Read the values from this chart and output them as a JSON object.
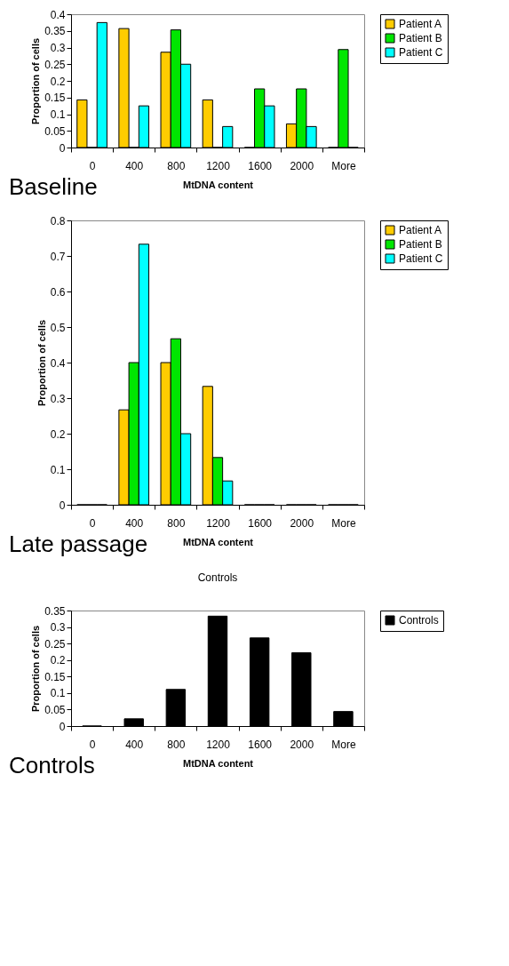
{
  "chart_data": [
    {
      "type": "bar",
      "xlabel": "MtDNA content",
      "ylabel": "Proportion of cells",
      "categories": [
        "0",
        "400",
        "800",
        "1200",
        "1600",
        "2000",
        "More"
      ],
      "ylim": [
        0,
        0.4
      ],
      "yticks": [
        0,
        0.05,
        0.1,
        0.15,
        0.2,
        0.25,
        0.3,
        0.35,
        0.4
      ],
      "legend": "right",
      "annotations": [
        "Baseline"
      ],
      "series": [
        {
          "name": "Patient A",
          "color": "#ffcc00",
          "values": [
            0.143,
            0.357,
            0.286,
            0.143,
            0,
            0.071,
            0
          ]
        },
        {
          "name": "Patient B",
          "color": "#00e600",
          "values": [
            0,
            0,
            0.353,
            0,
            0.176,
            0.176,
            0.294
          ]
        },
        {
          "name": "Patient C",
          "color": "#00ffff",
          "values": [
            0.375,
            0.125,
            0.25,
            0.063,
            0.125,
            0.063,
            0
          ]
        }
      ]
    },
    {
      "type": "bar",
      "xlabel": "MtDNA content",
      "ylabel": "Proportion of cells",
      "categories": [
        "0",
        "400",
        "800",
        "1200",
        "1600",
        "2000",
        "More"
      ],
      "ylim": [
        0,
        0.8
      ],
      "yticks": [
        0,
        0.1,
        0.2,
        0.3,
        0.4,
        0.5,
        0.6,
        0.7,
        0.8
      ],
      "legend": "right",
      "annotations": [
        "Late passage"
      ],
      "series": [
        {
          "name": "Patient A",
          "color": "#ffcc00",
          "values": [
            0,
            0.267,
            0.4,
            0.333,
            0,
            0,
            0
          ]
        },
        {
          "name": "Patient B",
          "color": "#00e600",
          "values": [
            0,
            0.4,
            0.467,
            0.133,
            0,
            0,
            0
          ]
        },
        {
          "name": "Patient C",
          "color": "#00ffff",
          "values": [
            0,
            0.733,
            0.2,
            0.067,
            0,
            0,
            0
          ]
        }
      ]
    },
    {
      "type": "bar",
      "title": "Controls",
      "xlabel": "MtDNA content",
      "ylabel": "Proportion of cells",
      "categories": [
        "0",
        "400",
        "800",
        "1200",
        "1600",
        "2000",
        "More"
      ],
      "ylim": [
        0,
        0.35
      ],
      "yticks": [
        0,
        0.05,
        0.1,
        0.15,
        0.2,
        0.25,
        0.3,
        0.35
      ],
      "legend": "right",
      "annotations": [
        "Controls"
      ],
      "series": [
        {
          "name": "Controls",
          "color": "#000000",
          "values": [
            0,
            0.022,
            0.111,
            0.333,
            0.267,
            0.222,
            0.044
          ]
        }
      ]
    }
  ]
}
